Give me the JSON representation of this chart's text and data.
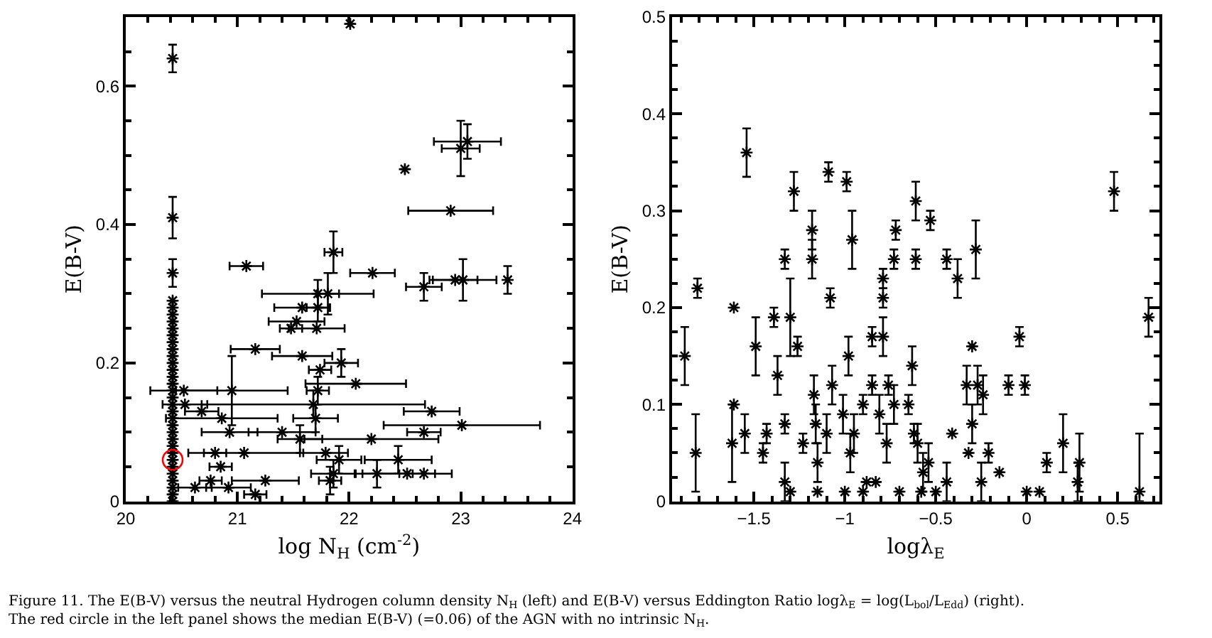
{
  "chart_data": [
    {
      "type": "scatter",
      "xlabel": "log N$_{H}$ (cm$^{-2}$)",
      "ylabel": "E(B-V)",
      "xlim": [
        20,
        24
      ],
      "ylim": [
        0,
        0.7
      ],
      "xticks": [
        20,
        21,
        22,
        23,
        24
      ],
      "yticks": [
        0,
        0.2,
        0.4,
        0.6
      ],
      "marker": "cross",
      "annotations": [
        "Figure 11. The E(B-V) versus the neutral Hydrogen column density N$_{H}$ (left) and E(B-V) versus Eddington Ratio logλ$_{E}$ = log(L$_{bol}$/L$_{Edd}$) (right). The red circle in the left panel shows the median E(B-V) (=0.06) of the AGN with no intrinsic N$_{H}$."
      ],
      "series": [
        {
          "color": "#000000",
          "x": [
            20.42,
            20.42,
            20.42,
            20.42,
            20.42,
            20.42,
            20.42,
            20.42,
            20.42,
            20.42,
            20.42,
            20.42,
            20.42,
            20.42,
            20.42,
            20.42,
            20.42,
            20.42,
            20.42,
            20.42,
            20.42,
            20.42,
            20.42,
            20.42,
            20.42,
            20.42,
            20.42,
            20.42,
            20.42,
            20.42,
            20.42,
            20.42,
            20.42,
            21.08,
            22.21,
            22.67,
            22.95,
            23.02,
            23.42,
            21.72,
            21.81,
            21.58,
            21.72,
            21.53,
            21.48,
            21.71,
            21.16,
            21.58,
            21.74,
            21.93,
            22.06,
            20.52,
            20.95,
            21.72,
            20.53,
            21.68,
            20.68,
            20.86,
            21.7,
            22.74,
            20.93,
            21.4,
            21.56,
            22.2,
            22.67,
            23.01,
            20.8,
            21.06,
            21.79,
            21.91,
            22.44,
            20.85,
            21.86,
            22.25,
            22.52,
            22.67,
            20.62,
            20.76,
            20.92,
            21.25,
            21.16,
            21.83,
            22.01,
            22.5,
            23.0,
            23.06,
            22.91,
            21.86
          ],
          "values": [
            0,
            0.01,
            0.02,
            0.03,
            0.04,
            0.05,
            0.06,
            0.07,
            0.08,
            0.09,
            0.1,
            0.11,
            0.12,
            0.13,
            0.14,
            0.15,
            0.16,
            0.17,
            0.18,
            0.19,
            0.2,
            0.21,
            0.22,
            0.23,
            0.24,
            0.25,
            0.26,
            0.27,
            0.28,
            0.29,
            0.33,
            0.41,
            0.64,
            0.34,
            0.33,
            0.31,
            0.32,
            0.32,
            0.32,
            0.3,
            0.3,
            0.28,
            0.28,
            0.26,
            0.25,
            0.25,
            0.22,
            0.21,
            0.19,
            0.2,
            0.17,
            0.16,
            0.16,
            0.16,
            0.14,
            0.14,
            0.13,
            0.12,
            0.12,
            0.13,
            0.1,
            0.1,
            0.09,
            0.09,
            0.1,
            0.11,
            0.07,
            0.07,
            0.07,
            0.06,
            0.06,
            0.05,
            0.04,
            0.04,
            0.04,
            0.04,
            0.02,
            0.03,
            0.02,
            0.03,
            0.01,
            0.03,
            0.69,
            0.48,
            0.51,
            0.52,
            0.42,
            0.36
          ],
          "errors": [
            null,
            null,
            null,
            null,
            null,
            null,
            null,
            null,
            null,
            null,
            null,
            null,
            null,
            null,
            null,
            null,
            null,
            null,
            null,
            null,
            null,
            null,
            null,
            null,
            null,
            null,
            null,
            null,
            null,
            null,
            0.02,
            0.03,
            0.02,
            null,
            null,
            0.02,
            null,
            0.03,
            0.02,
            0.02,
            0.03,
            null,
            0.02,
            null,
            null,
            null,
            null,
            null,
            null,
            0.02,
            null,
            null,
            0.05,
            0.02,
            null,
            0.02,
            null,
            null,
            0.02,
            null,
            null,
            null,
            0.02,
            null,
            null,
            null,
            null,
            null,
            null,
            0.02,
            0.02,
            null,
            0.02,
            0.02,
            null,
            null,
            null,
            null,
            null,
            null,
            null,
            0.02,
            null,
            null,
            0.04,
            0.025,
            null,
            0.03
          ],
          "xerrors": [
            null,
            null,
            null,
            null,
            null,
            null,
            null,
            null,
            null,
            null,
            null,
            null,
            null,
            null,
            null,
            null,
            null,
            null,
            null,
            null,
            null,
            null,
            null,
            null,
            null,
            null,
            null,
            null,
            null,
            null,
            null,
            null,
            null,
            0.15,
            0.2,
            0.16,
            0.2,
            0.3,
            null,
            0.5,
            0.1,
            0.25,
            0.1,
            0.25,
            0.1,
            0.25,
            0.22,
            0.27,
            0.1,
            0.15,
            0.45,
            0.3,
            0.5,
            0.1,
            0.2,
            1.0,
            0.15,
            0.5,
            0.2,
            0.25,
            0.25,
            0.3,
            0.2,
            0.6,
            0.15,
            0.7,
            0.1,
            0.5,
            0.2,
            0.2,
            0.3,
            0.1,
            0.2,
            0.2,
            0.4,
            0.1,
            0.15,
            0.1,
            0.2,
            0.3,
            0.1,
            0.1,
            null,
            null,
            0.17,
            0.3,
            0.38,
            0.08
          ]
        },
        {
          "color": "#ff0000",
          "marker": "circle",
          "x": [
            20.42
          ],
          "values": [
            0.06
          ]
        }
      ]
    },
    {
      "type": "scatter",
      "xlabel": "logλ$_{E}$",
      "ylabel": "E(B-V)",
      "xlim": [
        -1.95,
        0.73
      ],
      "ylim": [
        0,
        0.5
      ],
      "xticks": [
        {
          "value": -1.5,
          "label": "−1.5"
        },
        {
          "value": -1,
          "label": "−1"
        },
        {
          "value": -0.5,
          "label": "−0.5"
        },
        0,
        0.5
      ],
      "yticks": [
        0,
        0.1,
        0.2,
        0.3,
        0.4,
        0.5
      ],
      "marker": "cross",
      "series": [
        {
          "color": "#000000",
          "x": [
            -1.54,
            -1.28,
            -1.09,
            -0.99,
            -0.61,
            -0.53,
            0.48,
            -1.33,
            -1.18,
            -1.18,
            -0.96,
            -0.72,
            -0.73,
            -0.61,
            -0.44,
            -0.28,
            -0.38,
            -1.88,
            -1.81,
            -1.82,
            -1.61,
            -1.61,
            -1.62,
            -1.55,
            -1.49,
            -1.39,
            -1.37,
            -1.43,
            -1.45,
            -1.33,
            -1.33,
            -1.3,
            -1.26,
            -1.23,
            -1.17,
            -1.16,
            -1.15,
            -1.08,
            -1.07,
            -1.1,
            -0.98,
            -1.01,
            -0.9,
            -0.95,
            -0.97,
            -0.85,
            -0.81,
            -0.79,
            -0.79,
            -0.85,
            -0.79,
            -0.76,
            -0.73,
            -0.77,
            -0.65,
            -0.63,
            -0.62,
            -0.6,
            -0.54,
            -0.57,
            -0.44,
            -0.41,
            -0.33,
            -0.3,
            -0.3,
            -0.27,
            -0.24,
            -0.21,
            -0.32,
            -0.25,
            -0.15,
            -0.1,
            -0.04,
            -0.01,
            0.0,
            0.11,
            0.07,
            0.2,
            0.29,
            0.28,
            0.67,
            0.62,
            -1.3,
            -1.15,
            -1.0,
            -0.9,
            -0.88,
            -0.83,
            -0.7,
            -0.58,
            -0.5
          ],
          "values": [
            0.36,
            0.32,
            0.34,
            0.33,
            0.31,
            0.29,
            0.32,
            0.25,
            0.28,
            0.25,
            0.27,
            0.28,
            0.25,
            0.25,
            0.25,
            0.26,
            0.23,
            0.15,
            0.22,
            0.05,
            0.2,
            0.1,
            0.06,
            0.07,
            0.16,
            0.19,
            0.13,
            0.07,
            0.05,
            0.08,
            0.02,
            0.19,
            0.16,
            0.06,
            0.11,
            0.08,
            0.04,
            0.21,
            0.12,
            0.07,
            0.15,
            0.09,
            0.1,
            0.07,
            0.05,
            0.12,
            0.09,
            0.23,
            0.21,
            0.17,
            0.17,
            0.12,
            0.1,
            0.06,
            0.1,
            0.14,
            0.07,
            0.06,
            0.04,
            0.03,
            0.02,
            0.07,
            0.12,
            0.16,
            0.08,
            0.12,
            0.11,
            0.05,
            0.05,
            0.02,
            0.03,
            0.12,
            0.17,
            0.12,
            0.01,
            0.04,
            0.01,
            0.06,
            0.04,
            0.02,
            0.19,
            0.01,
            0.01,
            0.01,
            0.01,
            0.01,
            0.02,
            0.02,
            0.01,
            0.01,
            0.01
          ],
          "errors": [
            0.025,
            0.02,
            0.01,
            0.01,
            0.02,
            0.01,
            0.02,
            0.01,
            0.02,
            0.02,
            0.03,
            0.01,
            0.01,
            0.01,
            0.01,
            0.03,
            0.02,
            0.03,
            0.01,
            0.04,
            null,
            null,
            0.04,
            0.02,
            0.03,
            0.01,
            0.02,
            0.01,
            0.01,
            0.01,
            0.02,
            0.04,
            0.01,
            0.01,
            0.02,
            0.02,
            0.02,
            0.01,
            0.02,
            0.02,
            0.02,
            0.02,
            0.01,
            0.02,
            0.02,
            0.01,
            0.02,
            0.01,
            0.01,
            0.01,
            0.02,
            0.01,
            0.02,
            0.02,
            0.01,
            0.02,
            0.01,
            0.02,
            0.02,
            0.02,
            0.02,
            null,
            0.02,
            null,
            0.02,
            0.02,
            0.02,
            0.01,
            null,
            0.02,
            null,
            0.01,
            0.01,
            0.01,
            null,
            0.01,
            null,
            0.03,
            0.03,
            0.02,
            0.02,
            [
              0,
              0.07
            ],
            null,
            null,
            null,
            null,
            null,
            null,
            null,
            null,
            null
          ]
        }
      ]
    }
  ]
}
